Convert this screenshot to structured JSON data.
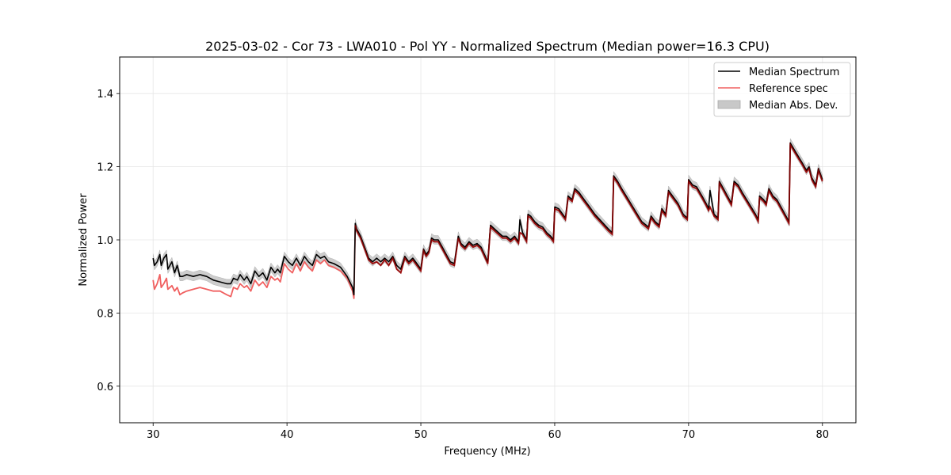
{
  "chart_data": {
    "type": "line",
    "title": "2025-03-02 - Cor 73 - LWA010 - Pol YY - Normalized Spectrum (Median power=16.3 CPU)",
    "xlabel": "Frequency (MHz)",
    "ylabel": "Normalized Power",
    "xlim": [
      27.5,
      82.5
    ],
    "ylim": [
      0.5,
      1.5
    ],
    "xticks": [
      30,
      40,
      50,
      60,
      70,
      80
    ],
    "xtick_labels": [
      "30",
      "40",
      "50",
      "60",
      "70",
      "80"
    ],
    "yticks": [
      0.6,
      0.8,
      1.0,
      1.2,
      1.4
    ],
    "ytick_labels": [
      "0.6",
      "0.8",
      "1.0",
      "1.2",
      "1.4"
    ],
    "grid": true,
    "legend_position": "top-right",
    "legend": [
      {
        "label": "Median Spectrum",
        "kind": "line",
        "color": "#000000"
      },
      {
        "label": "Reference spec",
        "kind": "line",
        "color": "#f06060"
      },
      {
        "label": "Median Abs. Dev.",
        "kind": "band",
        "color": "#c8c8c8"
      }
    ],
    "series": [
      {
        "name": "Median Spectrum",
        "color": "#000000",
        "x": [
          30.0,
          30.1,
          30.3,
          30.5,
          30.6,
          30.8,
          31.0,
          31.1,
          31.4,
          31.6,
          31.8,
          32.0,
          32.2,
          32.5,
          33.0,
          33.5,
          34.0,
          34.5,
          35.0,
          35.5,
          35.8,
          36.0,
          36.3,
          36.5,
          36.8,
          37.0,
          37.3,
          37.6,
          37.9,
          38.2,
          38.5,
          38.8,
          39.1,
          39.3,
          39.5,
          39.8,
          40.1,
          40.4,
          40.7,
          41.0,
          41.3,
          41.6,
          41.9,
          42.2,
          42.5,
          42.8,
          43.1,
          43.5,
          44.0,
          44.5,
          44.9,
          45.0,
          45.1,
          45.2,
          45.5,
          45.8,
          46.1,
          46.4,
          46.7,
          47.0,
          47.3,
          47.6,
          47.9,
          48.2,
          48.5,
          48.8,
          49.1,
          49.4,
          49.7,
          50.0,
          50.2,
          50.4,
          50.6,
          50.8,
          51.0,
          51.3,
          51.6,
          51.9,
          52.2,
          52.5,
          52.8,
          53.0,
          53.3,
          53.6,
          53.9,
          54.2,
          54.5,
          55.0,
          55.2,
          55.5,
          55.8,
          56.1,
          56.4,
          56.7,
          57.0,
          57.3,
          57.4,
          57.6,
          57.9,
          58.0,
          58.2,
          58.5,
          58.8,
          59.1,
          59.4,
          59.7,
          59.9,
          60.0,
          60.3,
          60.6,
          60.8,
          61.0,
          61.3,
          61.5,
          61.8,
          62.2,
          62.6,
          63.0,
          63.5,
          64.0,
          64.3,
          64.4,
          64.7,
          65.0,
          65.5,
          66.0,
          66.5,
          67.0,
          67.2,
          67.5,
          67.8,
          68.0,
          68.3,
          68.5,
          68.8,
          69.2,
          69.6,
          69.9,
          70.0,
          70.3,
          70.6,
          71.0,
          71.3,
          71.5,
          71.6,
          71.9,
          72.2,
          72.3,
          72.6,
          72.9,
          73.2,
          73.4,
          73.7,
          74.0,
          74.5,
          75.0,
          75.2,
          75.3,
          75.6,
          75.8,
          76.0,
          76.3,
          76.6,
          76.9,
          77.2,
          77.5,
          77.6,
          78.0,
          78.5,
          78.8,
          79.0,
          79.2,
          79.5,
          79.7,
          80.0
        ],
        "y": [
          0.95,
          0.93,
          0.94,
          0.96,
          0.93,
          0.95,
          0.96,
          0.92,
          0.94,
          0.91,
          0.93,
          0.9,
          0.9,
          0.905,
          0.9,
          0.905,
          0.9,
          0.89,
          0.885,
          0.88,
          0.88,
          0.895,
          0.89,
          0.905,
          0.89,
          0.9,
          0.88,
          0.915,
          0.9,
          0.91,
          0.89,
          0.925,
          0.91,
          0.92,
          0.91,
          0.955,
          0.94,
          0.93,
          0.95,
          0.93,
          0.955,
          0.94,
          0.93,
          0.96,
          0.95,
          0.955,
          0.94,
          0.935,
          0.925,
          0.9,
          0.87,
          0.85,
          1.045,
          1.03,
          1.01,
          0.98,
          0.95,
          0.94,
          0.95,
          0.94,
          0.95,
          0.94,
          0.955,
          0.93,
          0.92,
          0.955,
          0.94,
          0.95,
          0.935,
          0.92,
          0.975,
          0.96,
          0.97,
          1.005,
          1.0,
          1.0,
          0.98,
          0.96,
          0.94,
          0.935,
          1.01,
          0.99,
          0.98,
          0.995,
          0.985,
          0.99,
          0.98,
          0.94,
          1.04,
          1.03,
          1.02,
          1.01,
          1.01,
          1.0,
          1.01,
          0.995,
          1.055,
          1.02,
          1.0,
          1.07,
          1.065,
          1.05,
          1.04,
          1.035,
          1.02,
          1.01,
          1.0,
          1.09,
          1.085,
          1.07,
          1.06,
          1.12,
          1.11,
          1.14,
          1.13,
          1.11,
          1.09,
          1.07,
          1.05,
          1.03,
          1.02,
          1.175,
          1.16,
          1.14,
          1.11,
          1.08,
          1.05,
          1.035,
          1.065,
          1.05,
          1.04,
          1.085,
          1.07,
          1.135,
          1.12,
          1.1,
          1.07,
          1.06,
          1.165,
          1.15,
          1.145,
          1.12,
          1.1,
          1.085,
          1.135,
          1.07,
          1.06,
          1.16,
          1.14,
          1.12,
          1.1,
          1.16,
          1.15,
          1.13,
          1.1,
          1.07,
          1.055,
          1.12,
          1.11,
          1.1,
          1.14,
          1.12,
          1.11,
          1.09,
          1.07,
          1.05,
          1.265,
          1.24,
          1.21,
          1.19,
          1.2,
          1.17,
          1.15,
          1.195,
          1.165
        ]
      },
      {
        "name": "Reference spec",
        "color": "#f06060",
        "x": [
          30.0,
          30.1,
          30.3,
          30.5,
          30.6,
          30.8,
          31.0,
          31.1,
          31.4,
          31.6,
          31.8,
          32.0,
          32.2,
          32.5,
          33.0,
          33.5,
          34.0,
          34.5,
          35.0,
          35.5,
          35.8,
          36.0,
          36.3,
          36.5,
          36.8,
          37.0,
          37.3,
          37.6,
          37.9,
          38.2,
          38.5,
          38.8,
          39.1,
          39.3,
          39.5,
          39.8,
          40.1,
          40.4,
          40.7,
          41.0,
          41.3,
          41.6,
          41.9,
          42.2,
          42.5,
          42.8,
          43.1,
          43.5,
          44.0,
          44.5,
          44.9,
          45.0,
          45.1,
          45.2,
          45.5,
          45.8,
          46.1,
          46.4,
          46.7,
          47.0,
          47.3,
          47.6,
          47.9,
          48.2,
          48.5,
          48.8,
          49.1,
          49.4,
          49.7,
          50.0,
          50.2,
          50.4,
          50.6,
          50.8,
          51.0,
          51.3,
          51.6,
          51.9,
          52.2,
          52.5,
          52.8,
          53.0,
          53.3,
          53.6,
          53.9,
          54.2,
          54.5,
          55.0,
          55.2,
          55.5,
          55.8,
          56.1,
          56.4,
          56.7,
          57.0,
          57.3,
          57.4,
          57.6,
          57.9,
          58.0,
          58.2,
          58.5,
          58.8,
          59.1,
          59.4,
          59.7,
          59.9,
          60.0,
          60.3,
          60.6,
          60.8,
          61.0,
          61.3,
          61.5,
          61.8,
          62.2,
          62.6,
          63.0,
          63.5,
          64.0,
          64.3,
          64.4,
          64.7,
          65.0,
          65.5,
          66.0,
          66.5,
          67.0,
          67.2,
          67.5,
          67.8,
          68.0,
          68.3,
          68.5,
          68.8,
          69.2,
          69.6,
          69.9,
          70.0,
          70.3,
          70.6,
          71.0,
          71.3,
          71.5,
          71.6,
          71.9,
          72.2,
          72.3,
          72.6,
          72.9,
          73.2,
          73.4,
          73.7,
          74.0,
          74.5,
          75.0,
          75.2,
          75.3,
          75.6,
          75.8,
          76.0,
          76.3,
          76.6,
          76.9,
          77.2,
          77.5,
          77.6,
          78.0,
          78.5,
          78.8,
          79.0,
          79.2,
          79.5,
          79.7,
          80.0
        ],
        "y": [
          0.89,
          0.865,
          0.88,
          0.905,
          0.87,
          0.88,
          0.895,
          0.865,
          0.875,
          0.86,
          0.87,
          0.85,
          0.855,
          0.86,
          0.865,
          0.87,
          0.865,
          0.86,
          0.86,
          0.85,
          0.845,
          0.87,
          0.865,
          0.88,
          0.87,
          0.875,
          0.86,
          0.89,
          0.875,
          0.885,
          0.87,
          0.9,
          0.89,
          0.895,
          0.885,
          0.935,
          0.92,
          0.91,
          0.935,
          0.915,
          0.94,
          0.925,
          0.915,
          0.945,
          0.935,
          0.945,
          0.93,
          0.925,
          0.915,
          0.895,
          0.86,
          0.84,
          1.04,
          1.025,
          1.005,
          0.975,
          0.945,
          0.935,
          0.94,
          0.93,
          0.945,
          0.93,
          0.95,
          0.92,
          0.91,
          0.95,
          0.935,
          0.945,
          0.93,
          0.915,
          0.97,
          0.955,
          0.965,
          1.0,
          0.995,
          0.995,
          0.975,
          0.955,
          0.935,
          0.93,
          1.005,
          0.985,
          0.975,
          0.99,
          0.98,
          0.985,
          0.975,
          0.935,
          1.035,
          1.025,
          1.015,
          1.005,
          1.005,
          0.995,
          1.005,
          0.99,
          1.02,
          1.015,
          0.995,
          1.065,
          1.06,
          1.045,
          1.035,
          1.03,
          1.015,
          1.005,
          0.995,
          1.085,
          1.08,
          1.065,
          1.055,
          1.115,
          1.105,
          1.135,
          1.125,
          1.105,
          1.085,
          1.065,
          1.045,
          1.025,
          1.015,
          1.17,
          1.155,
          1.135,
          1.105,
          1.075,
          1.045,
          1.03,
          1.06,
          1.045,
          1.035,
          1.08,
          1.065,
          1.13,
          1.115,
          1.095,
          1.065,
          1.055,
          1.16,
          1.145,
          1.14,
          1.115,
          1.095,
          1.08,
          1.09,
          1.065,
          1.055,
          1.155,
          1.135,
          1.115,
          1.095,
          1.155,
          1.145,
          1.125,
          1.095,
          1.065,
          1.05,
          1.115,
          1.105,
          1.095,
          1.135,
          1.115,
          1.105,
          1.085,
          1.065,
          1.045,
          1.26,
          1.235,
          1.205,
          1.185,
          1.195,
          1.165,
          1.145,
          1.19,
          1.16
        ]
      }
    ],
    "band": {
      "name": "Median Abs. Dev.",
      "color": "#c8c8c8",
      "half_width": 0.012
    }
  }
}
